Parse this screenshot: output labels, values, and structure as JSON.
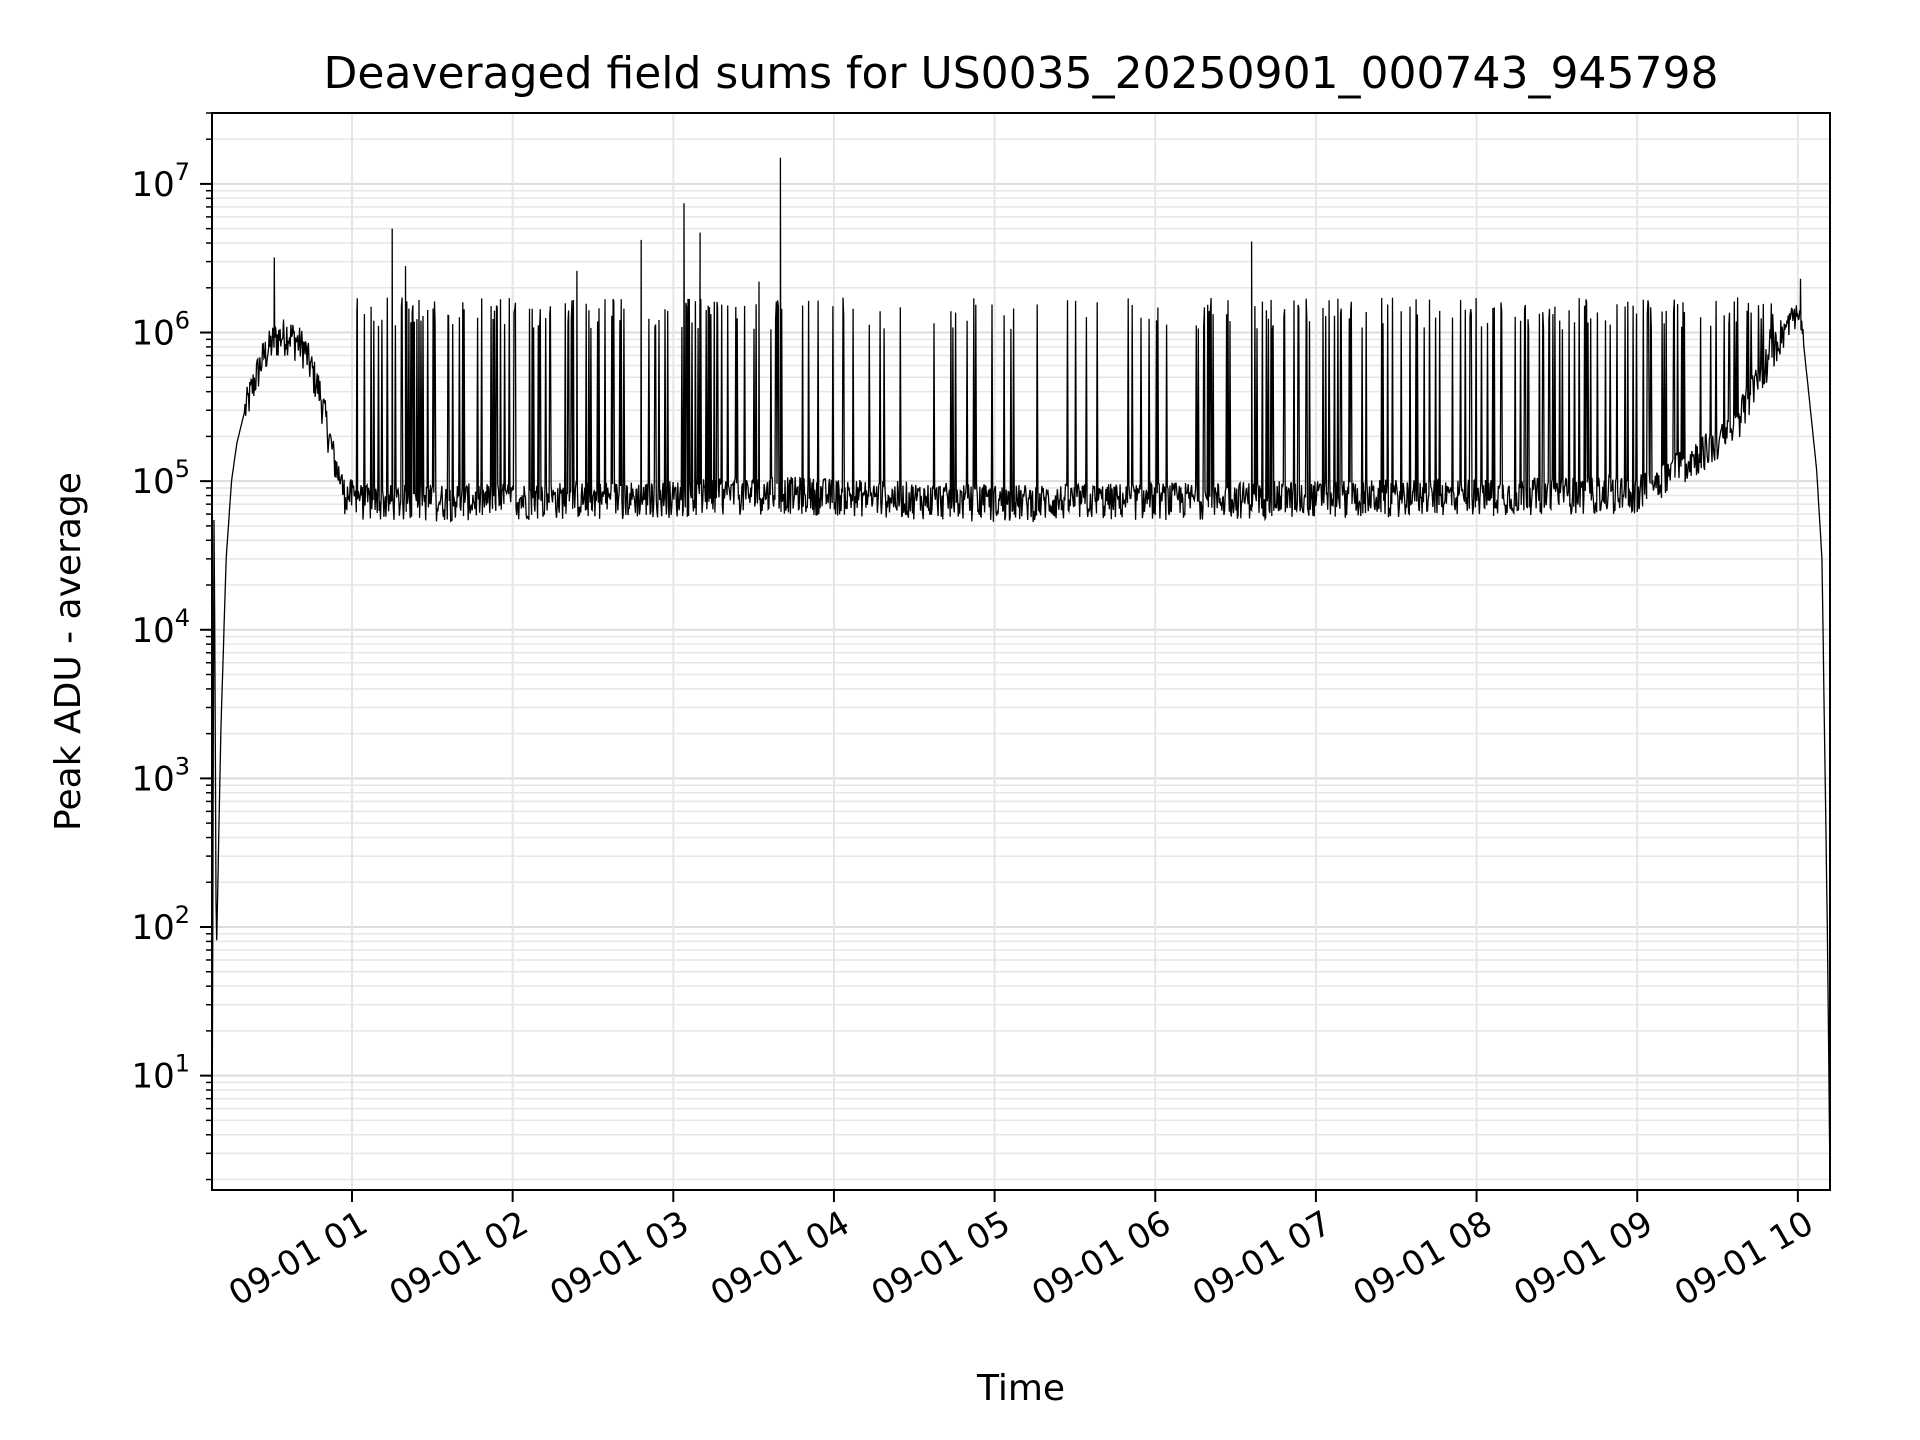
{
  "chart_data": {
    "type": "line",
    "title": "Deaveraged field sums for US0035_20250901_000743_945798",
    "xlabel": "Time",
    "ylabel": "Peak ADU - average",
    "yscale": "log",
    "ylim": [
      1.7,
      30000000
    ],
    "xlim": [
      "2025-09-01 00:07:43",
      "2025-09-01 10:12:00"
    ],
    "grid": true,
    "line_color": "#000000",
    "x_ticks": [
      {
        "label": "09-01 01",
        "time": "2025-09-01 01:00"
      },
      {
        "label": "09-01 02",
        "time": "2025-09-01 02:00"
      },
      {
        "label": "09-01 03",
        "time": "2025-09-01 03:00"
      },
      {
        "label": "09-01 04",
        "time": "2025-09-01 04:00"
      },
      {
        "label": "09-01 05",
        "time": "2025-09-01 05:00"
      },
      {
        "label": "09-01 06",
        "time": "2025-09-01 06:00"
      },
      {
        "label": "09-01 07",
        "time": "2025-09-01 07:00"
      },
      {
        "label": "09-01 08",
        "time": "2025-09-01 08:00"
      },
      {
        "label": "09-01 09",
        "time": "2025-09-01 09:00"
      },
      {
        "label": "09-01 10",
        "time": "2025-09-01 10:00"
      }
    ],
    "y_ticks": [
      {
        "base": "10",
        "exp": "1",
        "value": 10
      },
      {
        "base": "10",
        "exp": "2",
        "value": 100
      },
      {
        "base": "10",
        "exp": "3",
        "value": 1000
      },
      {
        "base": "10",
        "exp": "4",
        "value": 10000
      },
      {
        "base": "10",
        "exp": "5",
        "value": 100000
      },
      {
        "base": "10",
        "exp": "6",
        "value": 1000000
      },
      {
        "base": "10",
        "exp": "7",
        "value": 10000000
      }
    ],
    "series": [
      {
        "envelope_points": [
          [
            "2025-09-01 00:07:43",
            2
          ],
          [
            "2025-09-01 00:08:30",
            80000
          ],
          [
            "2025-09-01 00:09:20",
            60
          ],
          [
            "2025-09-01 00:11:00",
            2000
          ],
          [
            "2025-09-01 00:13:00",
            30000
          ],
          [
            "2025-09-01 00:15:00",
            100000
          ],
          [
            "2025-09-01 00:17:00",
            180000
          ],
          [
            "2025-09-01 00:20:00",
            300000
          ],
          [
            "2025-09-01 00:24:00",
            500000
          ],
          [
            "2025-09-01 00:27:00",
            700000
          ],
          [
            "2025-09-01 00:31:00",
            900000
          ],
          [
            "2025-09-01 00:36:00",
            1000000
          ],
          [
            "2025-09-01 00:42:00",
            800000
          ],
          [
            "2025-09-01 00:48:00",
            400000
          ],
          [
            "2025-09-01 00:53:00",
            150000
          ],
          [
            "2025-09-01 00:57:00",
            80000
          ],
          [
            "2025-09-01 01:05:00",
            70000
          ],
          [
            "2025-09-01 03:00:00",
            75000
          ],
          [
            "2025-09-01 03:40:00",
            80000
          ],
          [
            "2025-09-01 05:00:00",
            70000
          ],
          [
            "2025-09-01 07:00:00",
            75000
          ],
          [
            "2025-09-01 09:00:00",
            80000
          ],
          [
            "2025-09-01 09:35:00",
            200000
          ],
          [
            "2025-09-01 09:50:00",
            700000
          ],
          [
            "2025-09-01 09:58:00",
            1300000
          ],
          [
            "2025-09-01 10:01:00",
            1300000
          ],
          [
            "2025-09-01 10:04:00",
            400000
          ],
          [
            "2025-09-01 10:07:00",
            120000
          ],
          [
            "2025-09-01 10:09:00",
            30000
          ],
          [
            "2025-09-01 10:11:00",
            100
          ],
          [
            "2025-09-01 10:12:00",
            2
          ]
        ],
        "baseline": 70000,
        "burst_level": 1500000,
        "spikes": [
          [
            "2025-09-01 00:31:00",
            3200000
          ],
          [
            "2025-09-01 01:02:00",
            1700000
          ],
          [
            "2025-09-01 01:15:00",
            5000000
          ],
          [
            "2025-09-01 01:20:00",
            2800000
          ],
          [
            "2025-09-01 02:24:00",
            2600000
          ],
          [
            "2025-09-01 02:48:00",
            4200000
          ],
          [
            "2025-09-01 03:04:00",
            7400000
          ],
          [
            "2025-09-01 03:10:00",
            4700000
          ],
          [
            "2025-09-01 03:32:00",
            2200000
          ],
          [
            "2025-09-01 03:40:00",
            15000000
          ],
          [
            "2025-09-01 06:36:00",
            4100000
          ],
          [
            "2025-09-01 10:01:00",
            2300000
          ]
        ]
      }
    ]
  }
}
